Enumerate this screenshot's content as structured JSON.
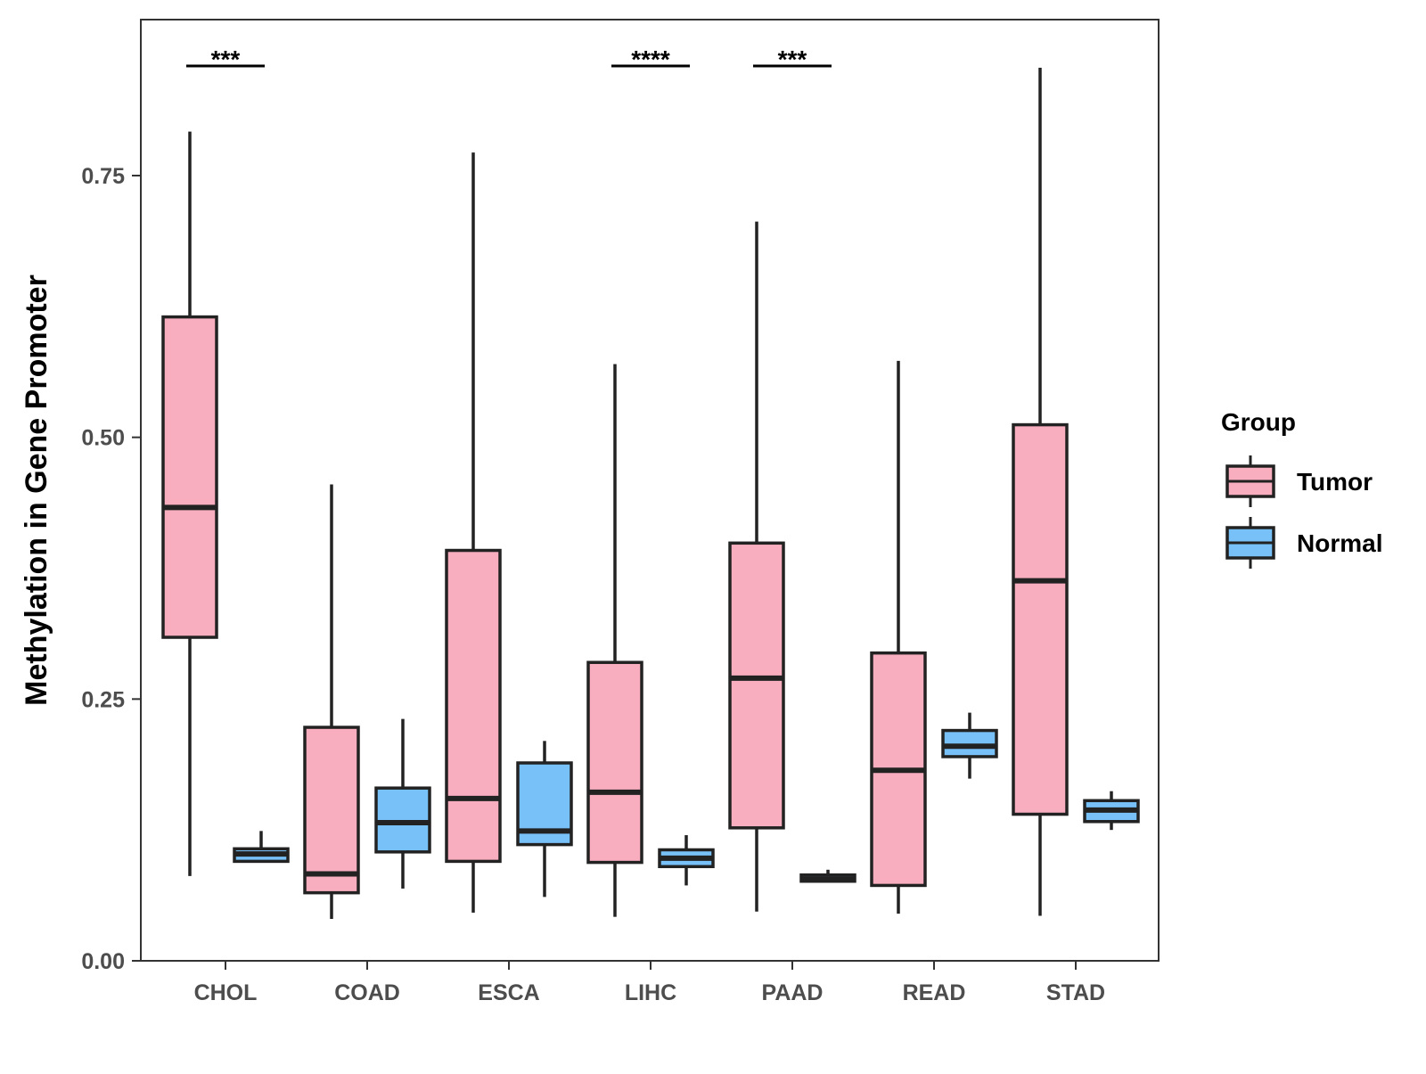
{
  "chart_data": {
    "type": "boxplot",
    "title": "",
    "xlabel": "",
    "ylabel": "Methylation in Gene Promoter",
    "ylim": [
      0,
      0.9
    ],
    "yticks": [
      0.0,
      0.25,
      0.5,
      0.75
    ],
    "ytick_labels": [
      "0.00",
      "0.25",
      "0.50",
      "0.75"
    ],
    "categories": [
      "CHOL",
      "COAD",
      "ESCA",
      "LIHC",
      "PAAD",
      "READ",
      "STAD"
    ],
    "grid": false,
    "legend": {
      "title": "Group",
      "position": "right",
      "entries": [
        {
          "name": "Tumor",
          "color": "#F9AEC0"
        },
        {
          "name": "Normal",
          "color": "#77C0F8"
        }
      ]
    },
    "series": [
      {
        "name": "Tumor",
        "color": "#F9AEC0",
        "boxes": [
          {
            "min": 0.081,
            "q1": 0.309,
            "median": 0.433,
            "q3": 0.615,
            "max": 0.792
          },
          {
            "min": 0.04,
            "q1": 0.065,
            "median": 0.083,
            "q3": 0.223,
            "max": 0.455
          },
          {
            "min": 0.046,
            "q1": 0.095,
            "median": 0.155,
            "q3": 0.392,
            "max": 0.772
          },
          {
            "min": 0.042,
            "q1": 0.094,
            "median": 0.161,
            "q3": 0.285,
            "max": 0.57
          },
          {
            "min": 0.047,
            "q1": 0.127,
            "median": 0.27,
            "q3": 0.399,
            "max": 0.706
          },
          {
            "min": 0.045,
            "q1": 0.072,
            "median": 0.182,
            "q3": 0.294,
            "max": 0.573
          },
          {
            "min": 0.043,
            "q1": 0.14,
            "median": 0.363,
            "q3": 0.512,
            "max": 0.853
          }
        ]
      },
      {
        "name": "Normal",
        "color": "#77C0F8",
        "boxes": [
          {
            "min": 0.095,
            "q1": 0.095,
            "median": 0.102,
            "q3": 0.107,
            "max": 0.124
          },
          {
            "min": 0.069,
            "q1": 0.104,
            "median": 0.132,
            "q3": 0.165,
            "max": 0.231
          },
          {
            "min": 0.061,
            "q1": 0.111,
            "median": 0.124,
            "q3": 0.189,
            "max": 0.21
          },
          {
            "min": 0.072,
            "q1": 0.09,
            "median": 0.098,
            "q3": 0.106,
            "max": 0.12
          },
          {
            "min": 0.076,
            "q1": 0.076,
            "median": 0.078,
            "q3": 0.082,
            "max": 0.087
          },
          {
            "min": 0.174,
            "q1": 0.195,
            "median": 0.205,
            "q3": 0.22,
            "max": 0.237
          },
          {
            "min": 0.125,
            "q1": 0.133,
            "median": 0.144,
            "q3": 0.153,
            "max": 0.162
          }
        ]
      }
    ],
    "annotations": [
      {
        "category": "CHOL",
        "label": "***"
      },
      {
        "category": "LIHC",
        "label": "****"
      },
      {
        "category": "PAAD",
        "label": "***"
      }
    ]
  }
}
